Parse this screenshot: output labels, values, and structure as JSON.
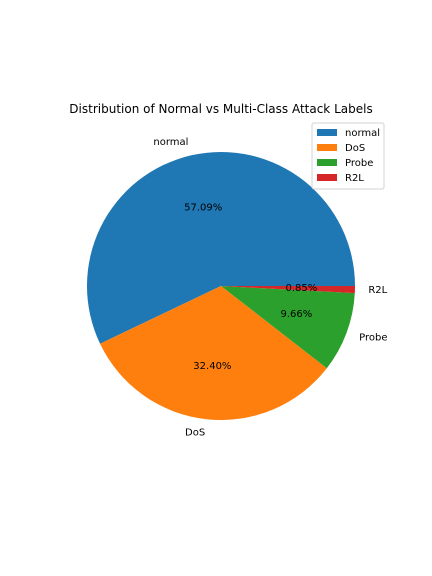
{
  "chart_data": {
    "type": "pie",
    "title": "Distribution of Normal vs Multi-Class Attack Labels",
    "start_angle_deg": 0,
    "direction": "counterclockwise",
    "slices": [
      {
        "label": "normal",
        "value": 57.09,
        "pct_label": "57.09%",
        "color": "#1f77b4"
      },
      {
        "label": "DoS",
        "value": 32.4,
        "pct_label": "32.40%",
        "color": "#ff7f0e"
      },
      {
        "label": "Probe",
        "value": 9.66,
        "pct_label": "9.66%",
        "color": "#2ca02c"
      },
      {
        "label": "R2L",
        "value": 0.85,
        "pct_label": "0.85%",
        "color": "#d62728"
      }
    ],
    "legend": {
      "placement": "top-right",
      "entries": [
        "normal",
        "DoS",
        "Probe",
        "R2L"
      ]
    }
  }
}
